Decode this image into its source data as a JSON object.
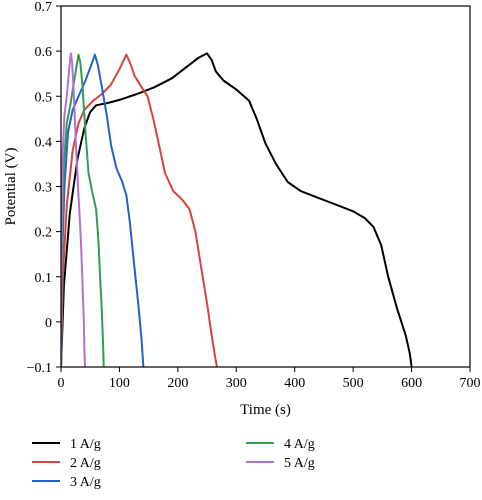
{
  "chart_data": {
    "type": "line",
    "title": "",
    "xlabel": "Time (s)",
    "ylabel": "Potential (V)",
    "xlim": [
      0,
      700
    ],
    "ylim": [
      -0.1,
      0.7
    ],
    "xticks": [
      0,
      100,
      200,
      300,
      400,
      500,
      600,
      700
    ],
    "yticks": [
      -0.1,
      0,
      0.1,
      0.2,
      0.3,
      0.4,
      0.5,
      0.6,
      0.7
    ],
    "xtick_labels": [
      "0",
      "100",
      "200",
      "300",
      "400",
      "500",
      "600",
      "700"
    ],
    "ytick_labels": [
      "−0.1",
      "0",
      "0.1",
      "0.2",
      "0.3",
      "0.4",
      "0.5",
      "0.6",
      "0.7"
    ],
    "grid": false,
    "legend_position": "below",
    "series": [
      {
        "name": "1 A/g",
        "color": "#000000",
        "points": [
          [
            0,
            -0.1
          ],
          [
            5,
            0.08
          ],
          [
            15,
            0.24
          ],
          [
            28,
            0.36
          ],
          [
            40,
            0.43
          ],
          [
            50,
            0.465
          ],
          [
            60,
            0.48
          ],
          [
            80,
            0.485
          ],
          [
            100,
            0.492
          ],
          [
            130,
            0.505
          ],
          [
            160,
            0.52
          ],
          [
            190,
            0.54
          ],
          [
            215,
            0.565
          ],
          [
            235,
            0.585
          ],
          [
            250,
            0.595
          ],
          [
            258,
            0.58
          ],
          [
            265,
            0.555
          ],
          [
            278,
            0.535
          ],
          [
            300,
            0.515
          ],
          [
            322,
            0.49
          ],
          [
            335,
            0.45
          ],
          [
            350,
            0.395
          ],
          [
            368,
            0.35
          ],
          [
            388,
            0.31
          ],
          [
            410,
            0.29
          ],
          [
            440,
            0.275
          ],
          [
            470,
            0.26
          ],
          [
            500,
            0.245
          ],
          [
            520,
            0.23
          ],
          [
            535,
            0.21
          ],
          [
            548,
            0.17
          ],
          [
            560,
            0.1
          ],
          [
            575,
            0.03
          ],
          [
            590,
            -0.03
          ],
          [
            597,
            -0.07
          ],
          [
            600,
            -0.1
          ]
        ]
      },
      {
        "name": "2 A/g",
        "color": "#d9433e",
        "points": [
          [
            0,
            -0.1
          ],
          [
            3,
            0.1
          ],
          [
            10,
            0.26
          ],
          [
            20,
            0.38
          ],
          [
            30,
            0.44
          ],
          [
            40,
            0.47
          ],
          [
            55,
            0.49
          ],
          [
            70,
            0.505
          ],
          [
            85,
            0.525
          ],
          [
            100,
            0.56
          ],
          [
            112,
            0.592
          ],
          [
            118,
            0.575
          ],
          [
            126,
            0.545
          ],
          [
            138,
            0.52
          ],
          [
            148,
            0.5
          ],
          [
            158,
            0.45
          ],
          [
            168,
            0.39
          ],
          [
            178,
            0.33
          ],
          [
            192,
            0.29
          ],
          [
            208,
            0.27
          ],
          [
            220,
            0.25
          ],
          [
            230,
            0.2
          ],
          [
            240,
            0.12
          ],
          [
            250,
            0.04
          ],
          [
            258,
            -0.03
          ],
          [
            264,
            -0.08
          ],
          [
            267,
            -0.1
          ]
        ]
      },
      {
        "name": "3 A/g",
        "color": "#2462c9",
        "points": [
          [
            0,
            -0.1
          ],
          [
            2,
            0.15
          ],
          [
            6,
            0.3
          ],
          [
            12,
            0.42
          ],
          [
            20,
            0.47
          ],
          [
            30,
            0.5
          ],
          [
            42,
            0.535
          ],
          [
            52,
            0.57
          ],
          [
            58,
            0.592
          ],
          [
            63,
            0.57
          ],
          [
            70,
            0.52
          ],
          [
            78,
            0.46
          ],
          [
            86,
            0.39
          ],
          [
            95,
            0.34
          ],
          [
            105,
            0.31
          ],
          [
            112,
            0.28
          ],
          [
            118,
            0.22
          ],
          [
            125,
            0.13
          ],
          [
            133,
            0.03
          ],
          [
            138,
            -0.04
          ],
          [
            141,
            -0.1
          ]
        ]
      },
      {
        "name": "4 A/g",
        "color": "#2f9e4f",
        "points": [
          [
            0,
            -0.1
          ],
          [
            2,
            0.2
          ],
          [
            5,
            0.35
          ],
          [
            10,
            0.44
          ],
          [
            16,
            0.48
          ],
          [
            22,
            0.53
          ],
          [
            27,
            0.57
          ],
          [
            30,
            0.592
          ],
          [
            33,
            0.575
          ],
          [
            37,
            0.52
          ],
          [
            42,
            0.42
          ],
          [
            47,
            0.33
          ],
          [
            53,
            0.29
          ],
          [
            60,
            0.25
          ],
          [
            64,
            0.18
          ],
          [
            67,
            0.1
          ],
          [
            70,
            0.02
          ],
          [
            72,
            -0.05
          ],
          [
            73,
            -0.1
          ]
        ]
      },
      {
        "name": "5 A/g",
        "color": "#b36fd1",
        "points": [
          [
            0,
            -0.1
          ],
          [
            1,
            0.2
          ],
          [
            3,
            0.38
          ],
          [
            6,
            0.46
          ],
          [
            9,
            0.49
          ],
          [
            12,
            0.53
          ],
          [
            15,
            0.575
          ],
          [
            17,
            0.595
          ],
          [
            19,
            0.575
          ],
          [
            22,
            0.5
          ],
          [
            26,
            0.38
          ],
          [
            30,
            0.28
          ],
          [
            34,
            0.18
          ],
          [
            37,
            0.08
          ],
          [
            39,
            0.0
          ],
          [
            40,
            -0.06
          ],
          [
            41,
            -0.1
          ]
        ]
      }
    ]
  }
}
